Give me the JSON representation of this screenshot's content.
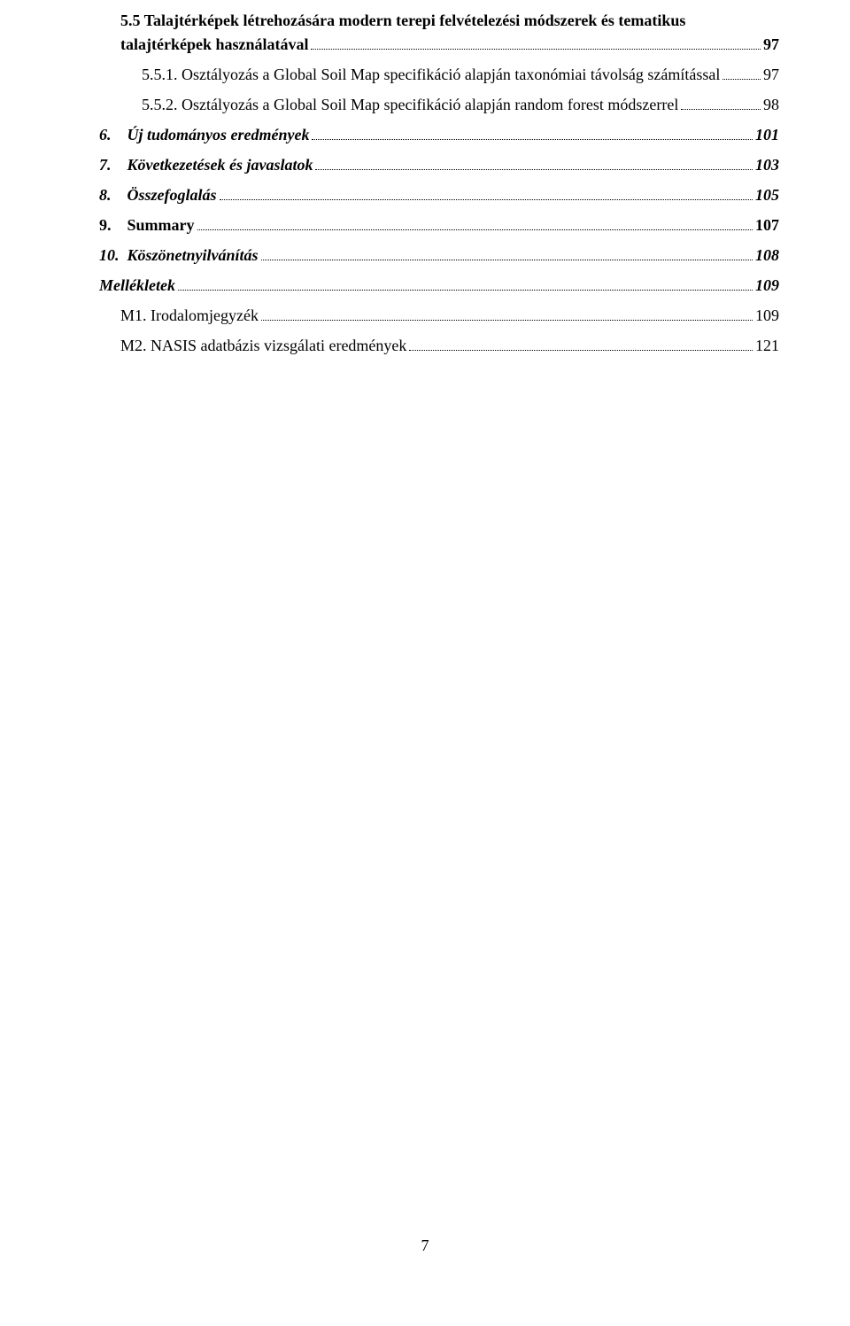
{
  "toc": {
    "entries": [
      {
        "type": "wrap",
        "line1": "5.5 Talajtérképek létrehozására modern terepi felvételezési módszerek és tematikus",
        "line2": "talajtérképek használatával",
        "page": "97",
        "style": "bold"
      },
      {
        "type": "single",
        "label": "5.5.1. Osztályozás a Global Soil Map specifikáció alapján taxonómiai távolság számítással",
        "page": "97",
        "indent": "indent-1",
        "style": ""
      },
      {
        "type": "single",
        "label": "5.5.2. Osztályozás a Global Soil Map specifikáció alapján random forest módszerrel",
        "page": "98",
        "indent": "indent-1",
        "style": ""
      },
      {
        "type": "single",
        "label": "6.    Új tudományos eredmények",
        "page": "101",
        "indent": "indent-2",
        "style": "bold italic"
      },
      {
        "type": "single",
        "label": "7.    Következetések és javaslatok",
        "page": "103",
        "indent": "indent-2",
        "style": "bold italic"
      },
      {
        "type": "single",
        "label": "8.    Összefoglalás",
        "page": "105",
        "indent": "indent-2",
        "style": "bold italic"
      },
      {
        "type": "single",
        "label": "9.    Summary",
        "page": "107",
        "indent": "indent-2",
        "style": "bold"
      },
      {
        "type": "single",
        "label": "10.  Köszönetnyilvánítás",
        "page": "108",
        "indent": "indent-2",
        "style": "bold italic"
      },
      {
        "type": "single",
        "label": "Mellékletek",
        "page": "109",
        "indent": "indent-2",
        "style": "bold italic"
      },
      {
        "type": "single",
        "label": "M1. Irodalomjegyzék",
        "page": "109",
        "indent": "indent-0",
        "style": ""
      },
      {
        "type": "single",
        "label": "M2. NASIS adatbázis vizsgálati eredmények",
        "page": "121",
        "indent": "indent-0",
        "style": ""
      }
    ]
  },
  "pageNumber": "7",
  "colors": {
    "text": "#000000",
    "background": "#ffffff"
  },
  "typography": {
    "fontFamily": "Times New Roman",
    "fontSize": 18
  }
}
